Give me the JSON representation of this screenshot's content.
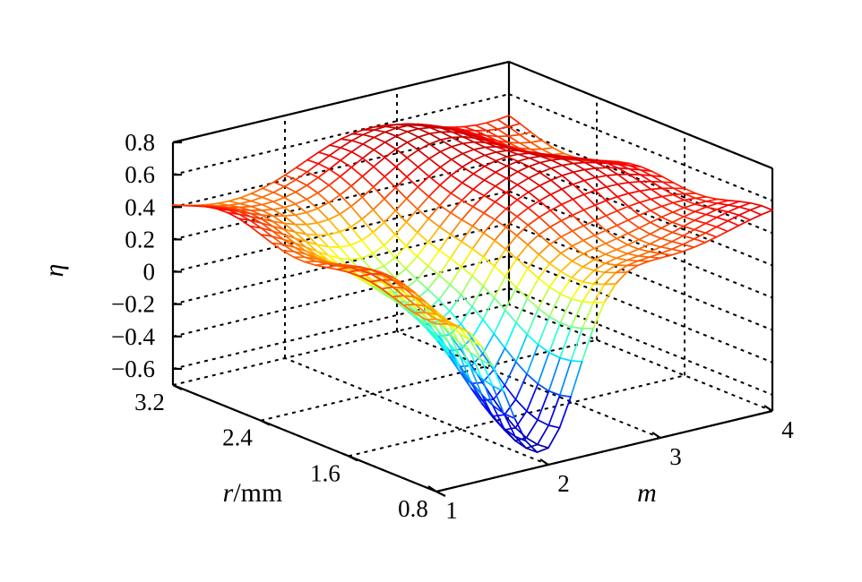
{
  "chart_data": {
    "type": "surface3d",
    "title": "",
    "zlabel": "η",
    "xlabel": "m",
    "ylabel_italic": "r",
    "ylabel_rest": "/mm",
    "x_ticks": [
      "1",
      "2",
      "3",
      "4"
    ],
    "y_ticks": [
      "0.8",
      "1.6",
      "2.4",
      "3.2"
    ],
    "z_ticks": [
      "0.8",
      "0.6",
      "0.4",
      "0.2",
      "0",
      "−0.2",
      "−0.4",
      "−0.6"
    ],
    "xlim": [
      1,
      4
    ],
    "ylim": [
      0.8,
      3.2
    ],
    "zlim": [
      -0.7,
      0.8
    ],
    "colormap": [
      "#00007f",
      "#0000ff",
      "#00ffff",
      "#ffff00",
      "#ff0000",
      "#800000"
    ],
    "grid": true,
    "surface": {
      "baseline": 0.45,
      "wells": [
        {
          "m": 1.95,
          "r": 0.8,
          "depth": -1.1,
          "sigma_m": 0.32,
          "sigma_r": 0.85
        }
      ],
      "ripples": [
        {
          "m": 3.0,
          "r": 2.6,
          "amp": 0.15,
          "sigma_m": 0.5,
          "sigma_r": 0.5
        },
        {
          "m": 1.4,
          "r": 2.2,
          "amp": -0.12,
          "sigma_m": 0.35,
          "sigma_r": 0.5
        }
      ]
    }
  }
}
